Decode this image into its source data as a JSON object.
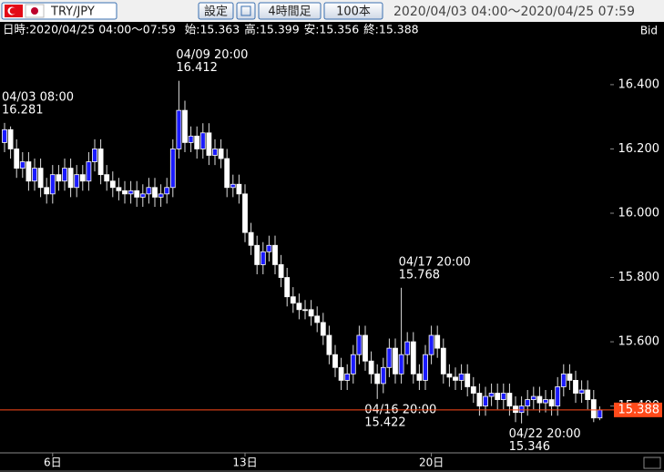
{
  "header": {
    "pair": "TRY/JPY",
    "buttons": [
      "設定",
      "4時間足",
      "100本"
    ],
    "range": "2020/04/03 04:00〜2020/04/25 07:59"
  },
  "chart_data": {
    "type": "candlestick",
    "info": "日時:2020/04/25 04:00〜07:59",
    "ohlc_labels": [
      "始:",
      "高:",
      "安:",
      "終:"
    ],
    "price_side": "Bid",
    "up_color": "#1a1aff",
    "down_color": "#ffffff",
    "price_line_color": "#ff4a1a",
    "categories": [
      null,
      null,
      null,
      null,
      null,
      null,
      null,
      null,
      "6日",
      null,
      null,
      null,
      null,
      null,
      null,
      null,
      null,
      null,
      null,
      null,
      null,
      null,
      null,
      null,
      null,
      null,
      null,
      null,
      null,
      null,
      null,
      null,
      null,
      null,
      null,
      null,
      null,
      null,
      null,
      null,
      "13日",
      null,
      null,
      null,
      null,
      null,
      null,
      null,
      null,
      null,
      null,
      null,
      null,
      null,
      null,
      null,
      null,
      null,
      null,
      null,
      null,
      null,
      null,
      null,
      null,
      null,
      null,
      null,
      null,
      null,
      null,
      "20日",
      null,
      null,
      null,
      null,
      null,
      null,
      null,
      null,
      null,
      null,
      null,
      null,
      null,
      null,
      null,
      null,
      null,
      null,
      null,
      null,
      null,
      null,
      null,
      null,
      null,
      null,
      null,
      null
    ],
    "point_labels": [
      "04/03 08:00",
      null,
      null,
      null,
      null,
      null,
      null,
      null,
      null,
      null,
      null,
      null,
      null,
      null,
      null,
      null,
      null,
      null,
      null,
      null,
      null,
      null,
      null,
      null,
      null,
      null,
      null,
      null,
      null,
      "04/09 20:00",
      null,
      null,
      null,
      null,
      null,
      null,
      null,
      null,
      null,
      null,
      null,
      null,
      null,
      null,
      null,
      null,
      null,
      null,
      null,
      null,
      null,
      null,
      null,
      null,
      null,
      null,
      null,
      null,
      null,
      null,
      null,
      null,
      "04/16 20:00",
      null,
      null,
      null,
      "04/17 20:00",
      null,
      null,
      null,
      null,
      null,
      null,
      null,
      null,
      null,
      null,
      null,
      null,
      null,
      null,
      null,
      null,
      null,
      null,
      null,
      "04/22 20:00",
      null,
      null,
      null,
      null,
      null,
      null,
      null,
      null,
      null,
      null,
      null,
      null,
      null
    ],
    "open": [
      16.22,
      16.26,
      16.2,
      16.14,
      16.16,
      16.1,
      16.14,
      16.08,
      16.06,
      16.12,
      16.1,
      16.14,
      16.08,
      16.12,
      16.1,
      16.16,
      16.2,
      16.12,
      16.1,
      16.08,
      16.07,
      16.06,
      16.07,
      16.05,
      16.06,
      16.08,
      16.05,
      16.06,
      16.08,
      16.2,
      16.32,
      16.22,
      16.24,
      16.2,
      16.25,
      16.18,
      16.2,
      16.17,
      16.08,
      16.09,
      16.06,
      15.94,
      15.9,
      15.84,
      15.88,
      15.9,
      15.84,
      15.8,
      15.74,
      15.72,
      15.7,
      15.7,
      15.68,
      15.66,
      15.62,
      15.56,
      15.52,
      15.48,
      15.5,
      15.56,
      15.62,
      15.54,
      15.5,
      15.47,
      15.52,
      15.58,
      15.5,
      15.56,
      15.6,
      15.5,
      15.48,
      15.56,
      15.62,
      15.58,
      15.5,
      15.49,
      15.48,
      15.5,
      15.46,
      15.44,
      15.4,
      15.43,
      15.44,
      15.42,
      15.44,
      15.4,
      15.38,
      15.4,
      15.42,
      15.43,
      15.41,
      15.42,
      15.4,
      15.46,
      15.5,
      15.48,
      15.44,
      15.45,
      15.42,
      15.363
    ],
    "high": [
      16.281,
      16.27,
      16.23,
      16.19,
      16.19,
      16.17,
      16.17,
      16.11,
      16.15,
      16.15,
      16.17,
      16.17,
      16.15,
      16.15,
      16.19,
      16.23,
      16.23,
      16.15,
      16.13,
      16.11,
      16.1,
      16.1,
      16.1,
      16.09,
      16.11,
      16.11,
      16.09,
      16.11,
      16.23,
      16.412,
      16.35,
      16.27,
      16.27,
      16.28,
      16.28,
      16.23,
      16.23,
      16.2,
      16.12,
      16.12,
      16.09,
      15.97,
      15.93,
      15.91,
      15.93,
      15.93,
      15.87,
      15.83,
      15.77,
      15.75,
      15.73,
      15.73,
      15.71,
      15.69,
      15.65,
      15.59,
      15.55,
      15.53,
      15.59,
      15.65,
      15.65,
      15.57,
      15.53,
      15.55,
      15.61,
      15.61,
      15.768,
      15.63,
      15.63,
      15.53,
      15.59,
      15.65,
      15.65,
      15.61,
      15.53,
      15.52,
      15.53,
      15.53,
      15.49,
      15.47,
      15.46,
      15.47,
      15.47,
      15.47,
      15.47,
      15.43,
      15.43,
      15.45,
      15.46,
      15.46,
      15.45,
      15.45,
      15.49,
      15.53,
      15.53,
      15.51,
      15.48,
      15.48,
      15.45,
      15.399
    ],
    "low": [
      16.19,
      16.17,
      16.11,
      16.11,
      16.07,
      16.07,
      16.05,
      16.03,
      16.03,
      16.07,
      16.07,
      16.05,
      16.05,
      16.07,
      16.07,
      16.13,
      16.09,
      16.07,
      16.05,
      16.04,
      16.03,
      16.03,
      16.02,
      16.02,
      16.03,
      16.02,
      16.02,
      16.03,
      16.05,
      16.17,
      16.19,
      16.19,
      16.17,
      16.17,
      16.15,
      16.15,
      16.14,
      16.05,
      16.05,
      16.03,
      15.91,
      15.87,
      15.81,
      15.81,
      15.85,
      15.81,
      15.77,
      15.71,
      15.69,
      15.67,
      15.67,
      15.65,
      15.63,
      15.59,
      15.53,
      15.49,
      15.45,
      15.45,
      15.47,
      15.53,
      15.51,
      15.47,
      15.422,
      15.44,
      15.49,
      15.47,
      15.47,
      15.53,
      15.47,
      15.45,
      15.45,
      15.53,
      15.55,
      15.47,
      15.46,
      15.45,
      15.45,
      15.43,
      15.41,
      15.37,
      15.37,
      15.4,
      15.39,
      15.39,
      15.37,
      15.35,
      15.346,
      15.37,
      15.39,
      15.38,
      15.38,
      15.37,
      15.37,
      15.43,
      15.45,
      15.41,
      15.41,
      15.39,
      15.35,
      15.356
    ],
    "close": [
      16.26,
      16.2,
      16.14,
      16.16,
      16.1,
      16.14,
      16.08,
      16.06,
      16.12,
      16.1,
      16.14,
      16.08,
      16.12,
      16.1,
      16.16,
      16.2,
      16.12,
      16.1,
      16.08,
      16.07,
      16.06,
      16.07,
      16.05,
      16.06,
      16.08,
      16.05,
      16.06,
      16.08,
      16.2,
      16.32,
      16.22,
      16.24,
      16.2,
      16.25,
      16.18,
      16.2,
      16.17,
      16.08,
      16.09,
      16.06,
      15.94,
      15.9,
      15.84,
      15.88,
      15.9,
      15.84,
      15.8,
      15.74,
      15.72,
      15.7,
      15.7,
      15.68,
      15.66,
      15.62,
      15.56,
      15.52,
      15.48,
      15.5,
      15.56,
      15.62,
      15.54,
      15.5,
      15.47,
      15.52,
      15.58,
      15.5,
      15.56,
      15.6,
      15.5,
      15.48,
      15.56,
      15.62,
      15.58,
      15.5,
      15.49,
      15.48,
      15.5,
      15.46,
      15.44,
      15.4,
      15.43,
      15.44,
      15.42,
      15.44,
      15.4,
      15.38,
      15.4,
      15.42,
      15.43,
      15.41,
      15.42,
      15.4,
      15.46,
      15.5,
      15.48,
      15.44,
      15.45,
      15.42,
      15.363,
      15.388
    ],
    "ylim": [
      15.26,
      16.55
    ],
    "yticks": [
      {
        "value": 15.4,
        "label": "15.400"
      },
      {
        "value": 15.6,
        "label": "15.600"
      },
      {
        "value": 15.8,
        "label": "15.800"
      },
      {
        "value": 16.0,
        "label": "16.000"
      },
      {
        "value": 16.2,
        "label": "16.200"
      },
      {
        "value": 16.4,
        "label": "16.400"
      }
    ]
  }
}
